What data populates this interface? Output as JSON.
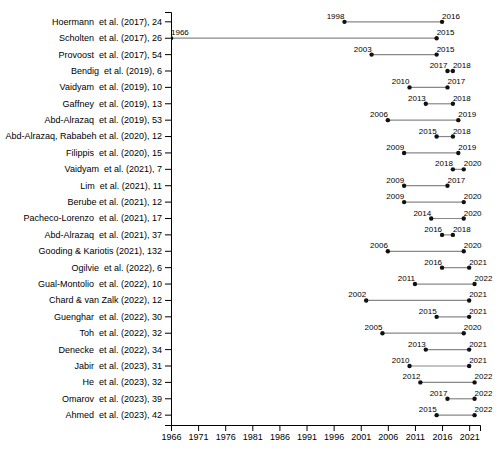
{
  "chart_data": {
    "type": "dumbbell",
    "orientation": "horizontal",
    "categories": [
      "Hoermann  et al. (2017), 24",
      "Scholten  et al. (2017), 26",
      "Provoost  et al. (2017), 54",
      "Bendig  et al. (2019), 6",
      "Vaidyam  et al. (2019), 10",
      "Gaffney  et al. (2019), 13",
      "Abd-Alrazaq  et al. (2019), 53",
      "Abd-Alrazaq, Rababeh et al. (2020), 12",
      "Filippis  et al. (2020), 15",
      "Vaidyam  et al. (2021), 7",
      "Lim  et al. (2021), 11",
      "Berube et al. (2021), 12",
      "Pacheco-Lorenzo  et al. (2021), 17",
      "Abd-Alrazaq  et al. (2021), 37",
      "Gooding & Kariotis (2021), 132",
      "Ogilvie  et al. (2022), 6",
      "Gual-Montolio  et al. (2022), 10",
      "Chard & van Zalk (2022), 12",
      "Guenghar  et al. (2022), 30",
      "Toh  et al. (2022), 32",
      "Denecke  et al. (2022), 34",
      "Jabir  et al. (2023), 31",
      "He  et al. (2023), 32",
      "Omarov  et al. (2023), 39",
      "Ahmed  et al. (2023), 42"
    ],
    "series": [
      {
        "color": "#111111",
        "values": [
          1998,
          1966,
          2003,
          2017,
          2010,
          2013,
          2006,
          2015,
          2009,
          2018,
          2009,
          2009,
          2014,
          2016,
          2006,
          2016,
          2011,
          2002,
          2015,
          2005,
          2013,
          2010,
          2012,
          2017,
          2015
        ]
      },
      {
        "color": "#111111",
        "values": [
          2016,
          2015,
          2015,
          2018,
          2017,
          2018,
          2019,
          2018,
          2019,
          2020,
          2017,
          2020,
          2020,
          2018,
          2020,
          2021,
          2022,
          2021,
          2021,
          2020,
          2021,
          2021,
          2022,
          2022,
          2022
        ]
      }
    ],
    "color": "#888888",
    "xlim": [
      1966,
      2023
    ],
    "xticks": [
      1966,
      1971,
      1976,
      1981,
      1986,
      1991,
      1996,
      2001,
      2006,
      2011,
      2016,
      2021
    ],
    "data_labels": true,
    "grid": false
  }
}
